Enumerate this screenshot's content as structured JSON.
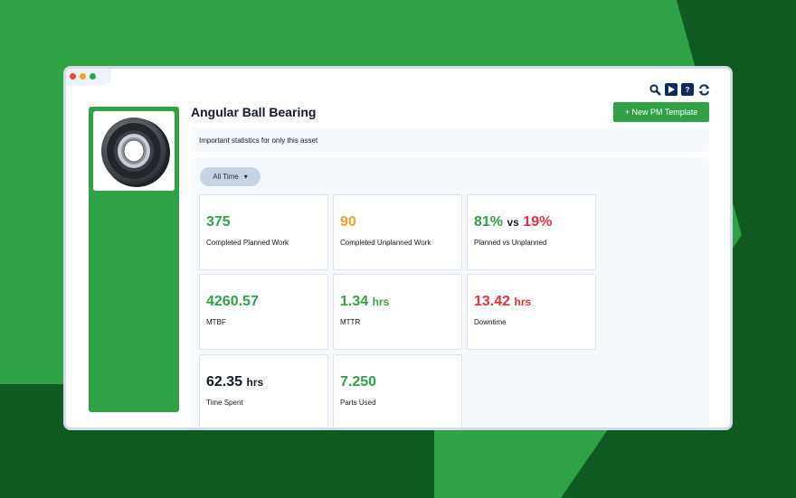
{
  "colors": {
    "brand_green": "#2ea245",
    "dark_green": "#0e5a22",
    "orange": "#f3a12b",
    "red": "#e0323d",
    "navy": "#0d2a5c"
  },
  "toolbar": {
    "icons": [
      "search-icon",
      "play-icon",
      "help-icon",
      "refresh-icon"
    ]
  },
  "asset": {
    "title": "Angular Ball Bearing",
    "image_icon": "ball-bearing-image"
  },
  "header": {
    "new_pm_button": "+ New PM Template"
  },
  "info": {
    "text": "Important statistics for only this asset"
  },
  "filter": {
    "selected": "All Time",
    "chevron": "▾"
  },
  "stats": {
    "completed_planned": {
      "value": "375",
      "label": "Completed Planned Work"
    },
    "completed_unplanned": {
      "value": "90",
      "label": "Completed Unplanned Work"
    },
    "planned_vs_unplanned": {
      "planned": "81%",
      "vs": "vs",
      "unplanned": "19%",
      "label": "Planned vs Unplanned"
    },
    "mtbf": {
      "value": "4260.57",
      "label": "MTBF"
    },
    "mttr": {
      "value": "1.34",
      "unit": "hrs",
      "label": "MTTR"
    },
    "downtime": {
      "value": "13.42",
      "unit": "hrs",
      "label": "Downtime"
    },
    "time_spent": {
      "value": "62.35",
      "unit": "hrs",
      "label": "Time Spent"
    },
    "parts_used": {
      "value": "7.250",
      "label": "Parts Used"
    }
  }
}
